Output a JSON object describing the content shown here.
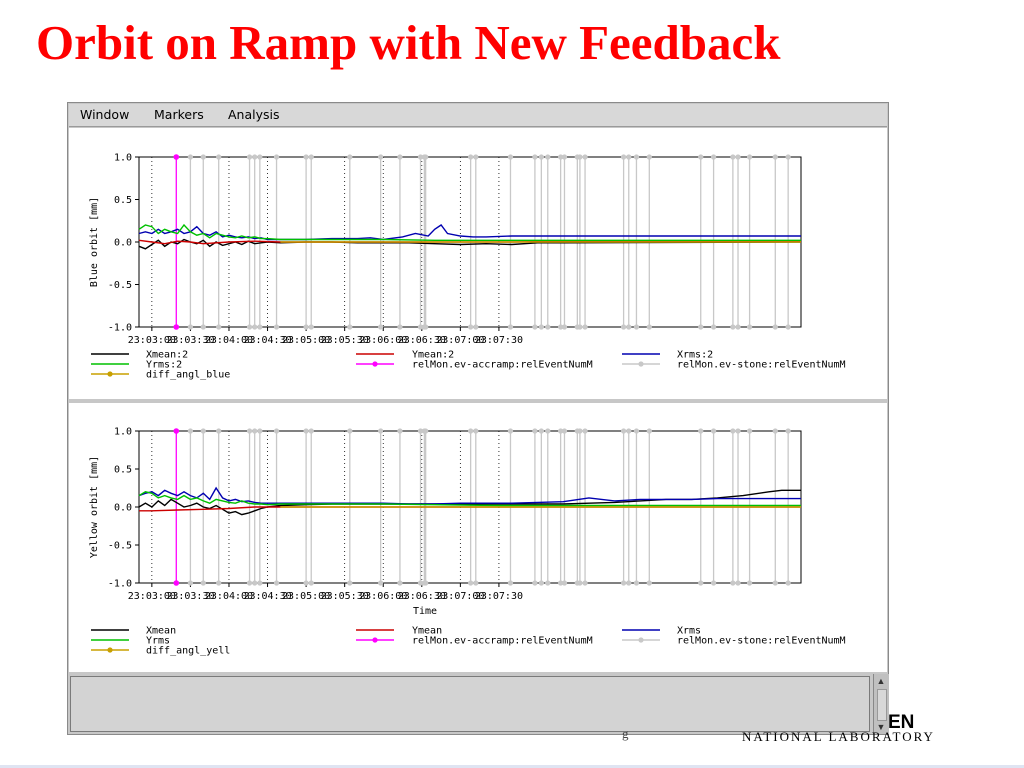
{
  "slide": {
    "title": "Orbit on Ramp with New Feedback",
    "footer_logo_main": "EN",
    "footer_logo_sub": "NATIONAL LABORATORY",
    "footer_stray": "g"
  },
  "menubar": {
    "items": [
      "Window",
      "Markers",
      "Analysis"
    ]
  },
  "colors": {
    "xmean": "#000000",
    "ymean": "#cc0000",
    "xrms": "#0000b0",
    "yrms": "#00c000",
    "accramp": "#ff00ff",
    "stone": "#c8c8c8",
    "diff_angl": "#c8a000"
  },
  "chart_data": [
    {
      "type": "line",
      "ylabel": "Blue orbit [mm]",
      "xlabel": "",
      "ylim": [
        -1.0,
        1.0
      ],
      "yticks": [
        "1.0",
        "0.5",
        "0.0",
        "-0.5",
        "-1.0"
      ],
      "ytick_values": [
        1.0,
        0.5,
        0.0,
        -0.5,
        -1.0
      ],
      "xlim_seconds": [
        170,
        685
      ],
      "xticks": [
        "23:03:00",
        "23:03:30",
        "23:04:00",
        "23:04:30",
        "23:05:00",
        "23:05:30",
        "23:06:00",
        "23:06:30",
        "23:07:00",
        "23:07:30"
      ],
      "xtick_seconds": [
        180,
        210,
        240,
        270,
        300,
        330,
        360,
        390,
        420,
        450
      ],
      "grid": "dotted verticals at x ticks",
      "legend": [
        {
          "label": "Xmean:2",
          "key": "xmean",
          "style": "line"
        },
        {
          "label": "Ymean:2",
          "key": "ymean",
          "style": "line"
        },
        {
          "label": "Xrms:2",
          "key": "xrms",
          "style": "line"
        },
        {
          "label": "Yrms:2",
          "key": "yrms",
          "style": "line"
        },
        {
          "label": "relMon.ev-accramp:relEventNumM",
          "key": "accramp",
          "style": "marker"
        },
        {
          "label": "relMon.ev-stone:relEventNumM",
          "key": "stone",
          "style": "marker"
        },
        {
          "label": "diff_angl_blue",
          "key": "diff_angl",
          "style": "marker"
        }
      ],
      "series": [
        {
          "name": "Xmean:2",
          "key": "xmean",
          "x": [
            170,
            175,
            180,
            185,
            190,
            195,
            200,
            205,
            210,
            215,
            220,
            225,
            230,
            235,
            240,
            245,
            250,
            255,
            260,
            265,
            270,
            280,
            300,
            320,
            340,
            360,
            380,
            400,
            420,
            440,
            460,
            480,
            500,
            685
          ],
          "y": [
            -0.05,
            -0.08,
            -0.03,
            0.02,
            -0.05,
            0.0,
            -0.02,
            0.03,
            0.0,
            -0.02,
            0.02,
            -0.05,
            0.0,
            -0.04,
            -0.02,
            0.0,
            -0.03,
            0.01,
            -0.02,
            -0.01,
            0.0,
            -0.01,
            0.0,
            0.0,
            -0.01,
            -0.01,
            -0.01,
            -0.02,
            -0.03,
            -0.02,
            -0.03,
            -0.01,
            -0.01,
            0.0
          ]
        },
        {
          "name": "Ymean:2",
          "key": "ymean",
          "x": [
            170,
            180,
            190,
            200,
            210,
            220,
            240,
            260,
            280,
            300,
            340,
            380,
            420,
            460,
            520,
            685
          ],
          "y": [
            0.02,
            0.0,
            -0.02,
            0.01,
            0.0,
            -0.02,
            0.0,
            0.01,
            0.0,
            0.0,
            0.0,
            0.0,
            0.0,
            0.0,
            0.01,
            0.01
          ]
        },
        {
          "name": "Xrms:2",
          "key": "xrms",
          "x": [
            170,
            175,
            180,
            185,
            190,
            195,
            200,
            205,
            210,
            215,
            220,
            225,
            230,
            235,
            240,
            245,
            250,
            255,
            260,
            265,
            270,
            280,
            300,
            320,
            340,
            350,
            360,
            375,
            385,
            395,
            400,
            405,
            410,
            420,
            430,
            440,
            460,
            500,
            550,
            620,
            685
          ],
          "y": [
            0.1,
            0.12,
            0.1,
            0.15,
            0.1,
            0.12,
            0.15,
            0.1,
            0.12,
            0.18,
            0.1,
            0.08,
            0.12,
            0.06,
            0.08,
            0.06,
            0.05,
            0.06,
            0.04,
            0.05,
            0.03,
            0.03,
            0.03,
            0.04,
            0.04,
            0.05,
            0.03,
            0.06,
            0.1,
            0.07,
            0.15,
            0.2,
            0.1,
            0.07,
            0.06,
            0.06,
            0.07,
            0.07,
            0.07,
            0.07,
            0.07
          ]
        },
        {
          "name": "Yrms:2",
          "key": "yrms",
          "x": [
            170,
            175,
            180,
            185,
            190,
            195,
            200,
            205,
            210,
            215,
            220,
            225,
            230,
            235,
            240,
            245,
            250,
            255,
            260,
            265,
            270,
            280,
            300,
            330,
            360,
            400,
            450,
            500,
            685
          ],
          "y": [
            0.15,
            0.2,
            0.18,
            0.1,
            0.15,
            0.12,
            0.1,
            0.2,
            0.12,
            0.08,
            0.1,
            0.05,
            0.1,
            0.08,
            0.06,
            0.05,
            0.07,
            0.05,
            0.06,
            0.04,
            0.04,
            0.03,
            0.03,
            0.03,
            0.03,
            0.02,
            0.02,
            0.02,
            0.02
          ]
        },
        {
          "name": "diff_angl_blue",
          "key": "diff_angl",
          "x": [
            280,
            685
          ],
          "y": [
            0.0,
            0.0
          ]
        }
      ],
      "event_markers": {
        "accramp_x": [
          199
        ],
        "stone_x": [
          210,
          220,
          232,
          256,
          260,
          264,
          277,
          300,
          304,
          334,
          358,
          373,
          389,
          392,
          393,
          428,
          432,
          459,
          478,
          483,
          488,
          498,
          501,
          511,
          513,
          517,
          547,
          551,
          557,
          567,
          607,
          617,
          632,
          636,
          645,
          665,
          675
        ]
      }
    },
    {
      "type": "line",
      "ylabel": "Yellow orbit [mm]",
      "xlabel": "Time",
      "ylim": [
        -1.0,
        1.0
      ],
      "yticks": [
        "1.0",
        "0.5",
        "0.0",
        "-0.5",
        "-1.0"
      ],
      "ytick_values": [
        1.0,
        0.5,
        0.0,
        -0.5,
        -1.0
      ],
      "xlim_seconds": [
        170,
        685
      ],
      "xticks": [
        "23:03:00",
        "23:03:30",
        "23:04:00",
        "23:04:30",
        "23:05:00",
        "23:05:30",
        "23:06:00",
        "23:06:30",
        "23:07:00",
        "23:07:30"
      ],
      "xtick_seconds": [
        180,
        210,
        240,
        270,
        300,
        330,
        360,
        390,
        420,
        450
      ],
      "grid": "dotted verticals at x ticks",
      "legend": [
        {
          "label": "Xmean",
          "key": "xmean",
          "style": "line"
        },
        {
          "label": "Ymean",
          "key": "ymean",
          "style": "line"
        },
        {
          "label": "Xrms",
          "key": "xrms",
          "style": "line"
        },
        {
          "label": "Yrms",
          "key": "yrms",
          "style": "line"
        },
        {
          "label": "relMon.ev-accramp:relEventNumM",
          "key": "accramp",
          "style": "marker"
        },
        {
          "label": "relMon.ev-stone:relEventNumM",
          "key": "stone",
          "style": "marker"
        },
        {
          "label": "diff_angl_yell",
          "key": "diff_angl",
          "style": "marker"
        }
      ],
      "series": [
        {
          "name": "Xmean",
          "key": "xmean",
          "x": [
            170,
            175,
            180,
            185,
            190,
            195,
            200,
            205,
            210,
            215,
            220,
            225,
            230,
            235,
            240,
            245,
            250,
            255,
            260,
            265,
            270,
            280,
            300,
            320,
            340,
            360,
            380,
            400,
            420,
            440,
            460,
            480,
            500,
            520,
            540,
            560,
            580,
            600,
            620,
            640,
            660,
            670,
            685
          ],
          "y": [
            0.0,
            0.05,
            0.0,
            0.08,
            0.02,
            0.1,
            0.05,
            0.0,
            0.02,
            0.05,
            0.0,
            -0.02,
            0.02,
            -0.03,
            -0.08,
            -0.06,
            -0.1,
            -0.08,
            -0.05,
            -0.02,
            0.0,
            0.02,
            0.03,
            0.04,
            0.04,
            0.04,
            0.04,
            0.04,
            0.04,
            0.04,
            0.04,
            0.04,
            0.04,
            0.05,
            0.06,
            0.08,
            0.1,
            0.1,
            0.12,
            0.15,
            0.2,
            0.22,
            0.22
          ]
        },
        {
          "name": "Ymean",
          "key": "ymean",
          "x": [
            170,
            180,
            200,
            220,
            240,
            260,
            280,
            300,
            340,
            400,
            460,
            520,
            685
          ],
          "y": [
            -0.05,
            -0.05,
            -0.04,
            -0.03,
            -0.02,
            0.0,
            0.0,
            0.0,
            0.0,
            0.0,
            0.0,
            0.0,
            0.0
          ]
        },
        {
          "name": "Xrms",
          "key": "xrms",
          "x": [
            170,
            175,
            180,
            185,
            190,
            195,
            200,
            205,
            210,
            215,
            220,
            225,
            230,
            235,
            240,
            245,
            250,
            255,
            260,
            265,
            270,
            280,
            300,
            320,
            340,
            360,
            380,
            400,
            420,
            440,
            460,
            480,
            500,
            520,
            540,
            560,
            580,
            600,
            620,
            640,
            660,
            685
          ],
          "y": [
            0.15,
            0.18,
            0.2,
            0.15,
            0.22,
            0.18,
            0.15,
            0.2,
            0.15,
            0.12,
            0.18,
            0.1,
            0.25,
            0.12,
            0.08,
            0.1,
            0.07,
            0.08,
            0.06,
            0.05,
            0.05,
            0.05,
            0.05,
            0.05,
            0.05,
            0.05,
            0.04,
            0.04,
            0.05,
            0.05,
            0.05,
            0.06,
            0.07,
            0.12,
            0.08,
            0.1,
            0.1,
            0.1,
            0.11,
            0.11,
            0.11,
            0.11
          ]
        },
        {
          "name": "Yrms",
          "key": "yrms",
          "x": [
            170,
            175,
            180,
            185,
            190,
            195,
            200,
            205,
            210,
            215,
            220,
            225,
            230,
            235,
            240,
            245,
            250,
            255,
            260,
            265,
            270,
            280,
            300,
            330,
            360,
            400,
            450,
            500,
            685
          ],
          "y": [
            0.15,
            0.2,
            0.18,
            0.12,
            0.15,
            0.12,
            0.1,
            0.15,
            0.1,
            0.12,
            0.08,
            0.05,
            0.1,
            0.08,
            0.06,
            0.05,
            0.08,
            0.05,
            0.04,
            0.04,
            0.03,
            0.04,
            0.04,
            0.04,
            0.04,
            0.03,
            0.02,
            0.02,
            0.02
          ]
        },
        {
          "name": "diff_angl_yell",
          "key": "diff_angl",
          "x": [
            280,
            685
          ],
          "y": [
            0.0,
            0.0
          ]
        }
      ],
      "event_markers": {
        "accramp_x": [
          199
        ],
        "stone_x": [
          210,
          220,
          232,
          256,
          260,
          264,
          277,
          300,
          304,
          334,
          358,
          373,
          389,
          392,
          393,
          428,
          432,
          459,
          478,
          483,
          488,
          498,
          501,
          511,
          513,
          517,
          547,
          551,
          557,
          567,
          607,
          617,
          632,
          636,
          645,
          665,
          675
        ]
      }
    }
  ]
}
